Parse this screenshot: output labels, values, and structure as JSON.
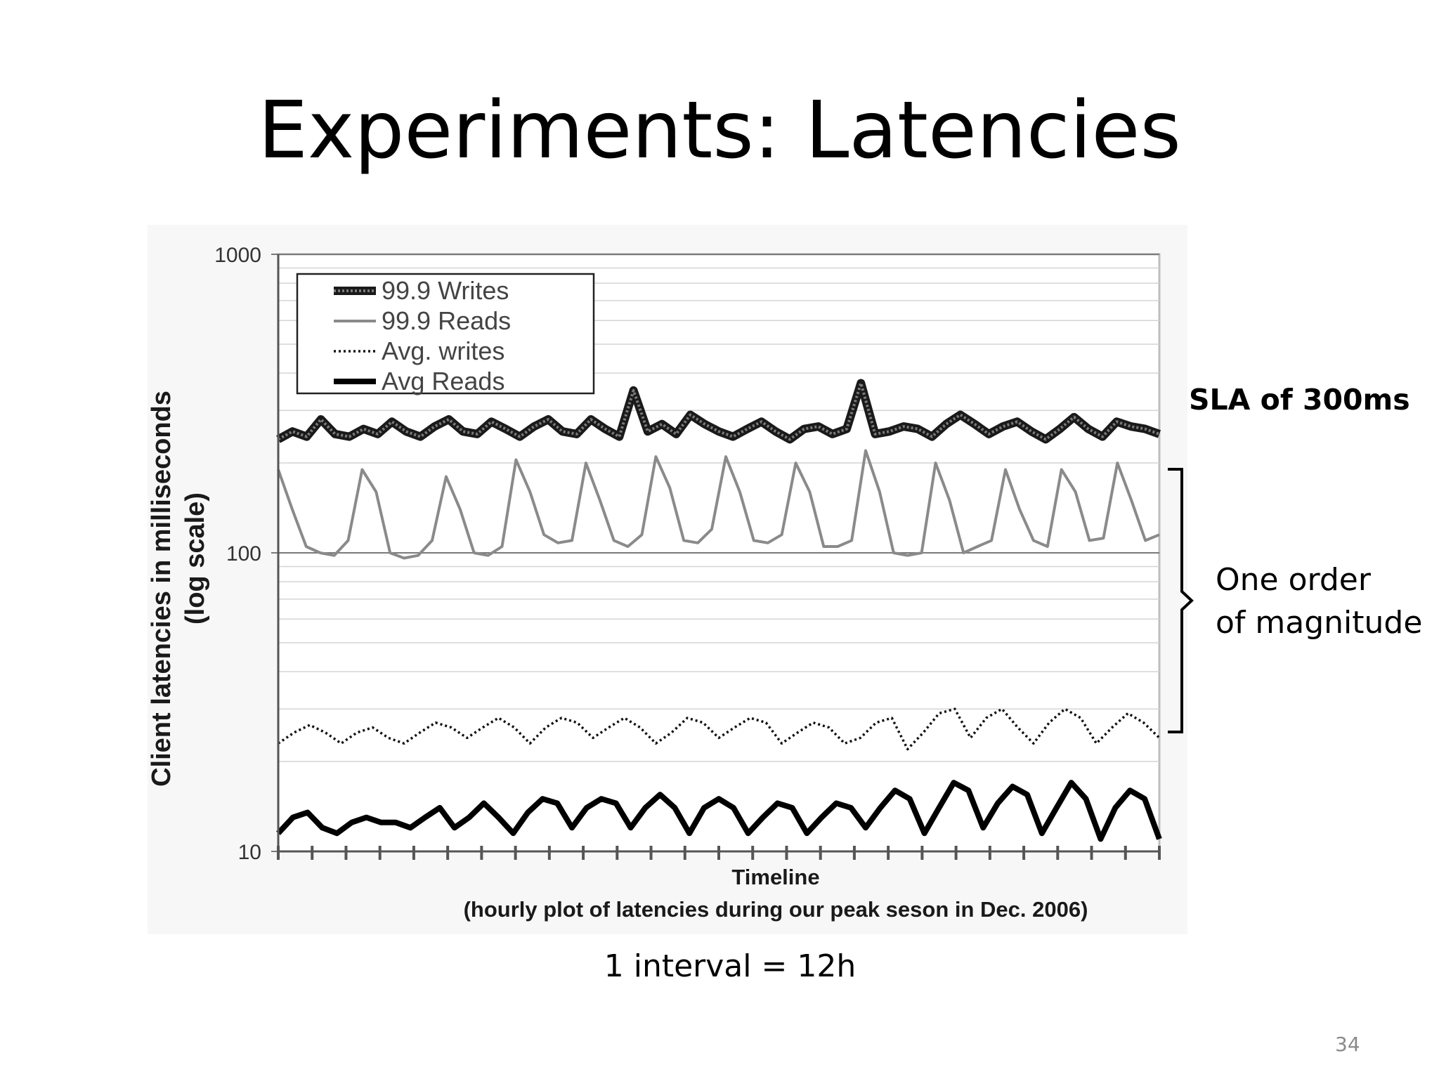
{
  "slide": {
    "title": "Experiments: Latencies",
    "sla_label": "SLA of 300ms",
    "magnitude_line1": "One order",
    "magnitude_line2": "of magnitude",
    "interval_note": "1 interval = 12h",
    "page_number": "34"
  },
  "chart_data": {
    "type": "line",
    "title": "",
    "xlabel": "Timeline",
    "xlabel_sub": "(hourly plot of latencies during our peak seson in Dec. 2006)",
    "ylabel": "Client latencies in milliseconds",
    "ylabel_sub": "(log scale)",
    "y_scale": "log",
    "ylim": [
      10,
      1000
    ],
    "yticks": [
      "10",
      "100",
      "1000"
    ],
    "x_intervals": 26,
    "grid": true,
    "legend_position": "top-left",
    "series": [
      {
        "name": "99.9 Writes",
        "style": "thick-textured",
        "color": "#333333",
        "values": [
          240,
          255,
          245,
          280,
          250,
          245,
          260,
          250,
          275,
          255,
          245,
          265,
          280,
          255,
          250,
          275,
          260,
          245,
          265,
          280,
          255,
          250,
          280,
          260,
          245,
          350,
          255,
          270,
          250,
          290,
          270,
          255,
          245,
          260,
          275,
          255,
          240,
          260,
          265,
          250,
          260,
          370,
          250,
          255,
          265,
          260,
          245,
          270,
          290,
          270,
          250,
          265,
          275,
          255,
          240,
          260,
          285,
          260,
          245,
          275,
          265,
          260,
          250
        ]
      },
      {
        "name": "99.9 Reads",
        "style": "medium-gray",
        "color": "#888888",
        "values": [
          190,
          140,
          105,
          100,
          98,
          110,
          190,
          160,
          100,
          96,
          98,
          110,
          180,
          140,
          100,
          98,
          105,
          205,
          160,
          115,
          108,
          110,
          200,
          150,
          110,
          105,
          115,
          210,
          165,
          110,
          108,
          120,
          210,
          160,
          110,
          108,
          115,
          200,
          160,
          105,
          105,
          110,
          220,
          160,
          100,
          98,
          100,
          200,
          150,
          100,
          105,
          110,
          190,
          140,
          110,
          105,
          190,
          160,
          110,
          112,
          200,
          150,
          110,
          115
        ]
      },
      {
        "name": "Avg. writes",
        "style": "dotted",
        "color": "#111111",
        "values": [
          23,
          25,
          26.5,
          25,
          23,
          25,
          26,
          24,
          23,
          25,
          27,
          26,
          24,
          26,
          28,
          26,
          23,
          26,
          28,
          27,
          24,
          26,
          28,
          26,
          23,
          25,
          28,
          27,
          24,
          26,
          28,
          27,
          23,
          25,
          27,
          26,
          23,
          24,
          27,
          28,
          22,
          25,
          29,
          30,
          24,
          28,
          30,
          26,
          23,
          27,
          30,
          28,
          23,
          26,
          29,
          27,
          24
        ]
      },
      {
        "name": "Avg Reads",
        "style": "thick-solid",
        "color": "#000000",
        "values": [
          11.5,
          13,
          13.5,
          12,
          11.5,
          12.5,
          13,
          12.5,
          12.5,
          12,
          13,
          14,
          12,
          13,
          14.5,
          13,
          11.5,
          13.5,
          15,
          14.5,
          12,
          14,
          15,
          14.5,
          12,
          14,
          15.5,
          14,
          11.5,
          14,
          15,
          14,
          11.5,
          13,
          14.5,
          14,
          11.5,
          13,
          14.5,
          14,
          12,
          14,
          16,
          15,
          11.5,
          14,
          17,
          16,
          12,
          14.5,
          16.5,
          15.5,
          11.5,
          14,
          17,
          15,
          11,
          14,
          16,
          15,
          11
        ]
      }
    ]
  }
}
